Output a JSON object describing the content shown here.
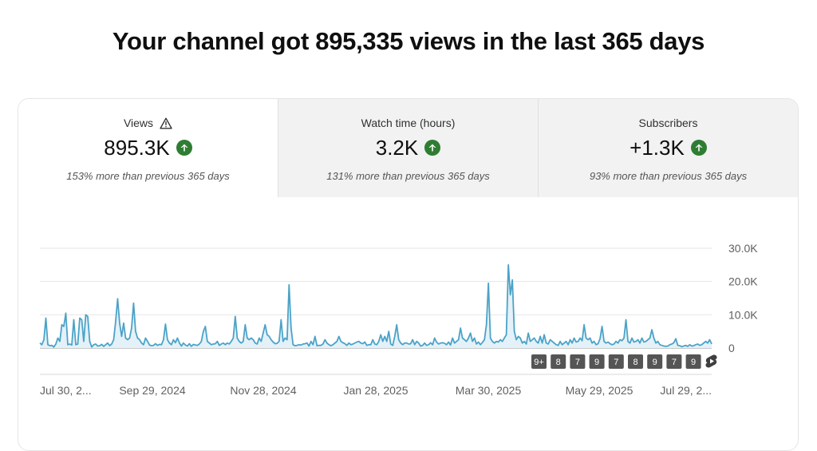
{
  "headline": "Your channel got 895,335 views in the last 365 days",
  "tabs": [
    {
      "label": "Views",
      "value": "895.3K",
      "sub": "153% more than previous 365 days",
      "warning": true,
      "icon": "arrow-up-icon"
    },
    {
      "label": "Watch time (hours)",
      "value": "3.2K",
      "sub": "131% more than previous 365 days",
      "icon": "arrow-up-icon"
    },
    {
      "label": "Subscribers",
      "value": "+1.3K",
      "sub": "93% more than previous 365 days",
      "icon": "arrow-up-icon"
    }
  ],
  "colors": {
    "line": "#4ba3c7",
    "fill": "#e4f1f8",
    "up": "#2e7d32",
    "marker": "#555555"
  },
  "chart_data": {
    "type": "area",
    "series": [
      {
        "values": [
          1500,
          1000,
          2500,
          9000,
          1000,
          700,
          800,
          300,
          1200,
          3000,
          2000,
          7000,
          6500,
          10500,
          1000,
          1200,
          900,
          8500,
          1000,
          1200,
          9000,
          8500,
          2000,
          10000,
          9500,
          2000,
          300,
          1000,
          1200,
          600,
          700,
          1100,
          500,
          1000,
          1500,
          700,
          1200,
          2500,
          8000,
          14800,
          7500,
          3500,
          7500,
          3000,
          2500,
          3000,
          6000,
          13500,
          5000,
          3000,
          2500,
          1500,
          1000,
          3000,
          2000,
          900,
          700,
          800,
          1300,
          800,
          1100,
          1000,
          2500,
          7200,
          2500,
          1500,
          1000,
          2500,
          1600,
          3000,
          1500,
          600,
          1500,
          900,
          600,
          1300,
          500,
          1100,
          900,
          800,
          1200,
          2000,
          5000,
          6500,
          2000,
          1500,
          1000,
          1200,
          1300,
          2000,
          800,
          1200,
          1500,
          1000,
          1500,
          1200,
          2000,
          3000,
          9500,
          3000,
          2000,
          1500,
          2000,
          7000,
          3000,
          2500,
          3000,
          2500,
          1500,
          1200,
          3000,
          2000,
          4500,
          7000,
          4000,
          3500,
          2500,
          1800,
          1300,
          1400,
          2000,
          8500,
          2000,
          3000,
          2500,
          19000,
          6000,
          1000,
          700,
          800,
          1000,
          900,
          1200,
          1300,
          1500,
          600,
          2000,
          1000,
          3500,
          700,
          800,
          800,
          1200,
          2500,
          1500,
          1000,
          700,
          1000,
          1500,
          2000,
          3500,
          2000,
          1600,
          1300,
          800,
          1500,
          1000,
          1200,
          1500,
          1800,
          2000,
          1500,
          1300,
          1800,
          800,
          1000,
          1000,
          2500,
          1200,
          1000,
          2000,
          4000,
          2000,
          3500,
          2000,
          5000,
          1200,
          800,
          3500,
          7000,
          2500,
          1500,
          1000,
          1500,
          1500,
          1200,
          1300,
          2500,
          1000,
          2000,
          1500,
          600,
          800,
          1500,
          800,
          1000,
          1600,
          1000,
          3000,
          1800,
          1200,
          1500,
          1600,
          1400,
          1000,
          1800,
          900,
          3000,
          1500,
          2000,
          2500,
          6000,
          3000,
          2500,
          2000,
          3000,
          4500,
          2000,
          3000,
          1200,
          1800,
          1000,
          1700,
          2500,
          7000,
          19500,
          3000,
          2000,
          1500,
          2000,
          1800,
          2500,
          2000,
          3000,
          4000,
          25000,
          16000,
          20500,
          5000,
          2500,
          3500,
          3000,
          1500,
          2000,
          1200,
          4500,
          2000,
          2500,
          3000,
          2000,
          1500,
          3500,
          1500,
          4000,
          1500,
          1200,
          2500,
          2000,
          1500,
          1000,
          800,
          2000,
          1000,
          1500,
          2000,
          1000,
          2500,
          1500,
          3000,
          1800,
          2000,
          3000,
          2200,
          7000,
          3000,
          2500,
          3000,
          1500,
          2000,
          1000,
          1300,
          2800,
          6500,
          2000,
          1500,
          1800,
          1300,
          1000,
          1200,
          2000,
          1500,
          2500,
          2200,
          3000,
          8500,
          2000,
          1500,
          3000,
          1800,
          2000,
          2500,
          1500,
          3000,
          1800,
          2000,
          2500,
          3000,
          5500,
          3000,
          1500,
          2000,
          1000,
          800,
          600,
          500,
          600,
          1000,
          1200,
          1600,
          2800,
          800,
          700,
          400,
          600,
          800,
          500,
          1000,
          600,
          700,
          1000,
          1200,
          800,
          1000,
          1500,
          2000,
          1500,
          2500,
          1200
        ]
      }
    ],
    "x_labels": [
      "Jul 30, 2...",
      "Sep 29, 2024",
      "Nov 28, 2024",
      "Jan 28, 2025",
      "Mar 30, 2025",
      "May 29, 2025",
      "Jul 29, 2..."
    ],
    "y_ticks": [
      "30.0K",
      "20.0K",
      "10.0K",
      "0"
    ],
    "ylim": [
      0,
      30000
    ],
    "grid": true,
    "markers": [
      "9+",
      "8",
      "7",
      "9",
      "7",
      "8",
      "9",
      "7",
      "9"
    ],
    "marker_end_icon": "shorts-icon"
  }
}
